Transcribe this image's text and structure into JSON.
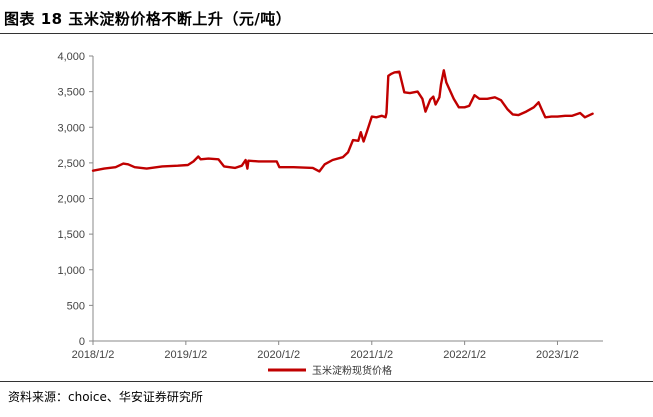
{
  "title": "图表 18 玉米淀粉价格不断上升（元/吨）",
  "source": "资料来源：choice、华安证券研究所",
  "chart_data": {
    "type": "line",
    "title": "图表 18 玉米淀粉价格不断上升（元/吨）",
    "xlabel": "",
    "ylabel": "",
    "ylim": [
      0,
      4000
    ],
    "yticks": [
      0,
      500,
      1000,
      1500,
      2000,
      2500,
      3000,
      3500,
      4000
    ],
    "ytick_labels": [
      "0",
      "500",
      "1,000",
      "1,500",
      "2,000",
      "2,500",
      "3,000",
      "3,500",
      "4,000"
    ],
    "xlim": [
      "2018-01-02",
      "2023-06-30"
    ],
    "xticks": [
      "2018-01-02",
      "2019-01-02",
      "2020-01-02",
      "2021-01-02",
      "2022-01-02",
      "2023-01-02"
    ],
    "xtick_labels": [
      "2018/1/2",
      "2019/1/2",
      "2020/1/2",
      "2021/1/2",
      "2022/1/2",
      "2023/1/2"
    ],
    "grid": false,
    "legend": "bottom",
    "series": [
      {
        "name": "玉米淀粉现货价格",
        "color": "#c00000",
        "points": [
          [
            "2018-01-02",
            2390
          ],
          [
            "2018-02-15",
            2420
          ],
          [
            "2018-04-01",
            2440
          ],
          [
            "2018-05-01",
            2490
          ],
          [
            "2018-05-20",
            2480
          ],
          [
            "2018-06-15",
            2440
          ],
          [
            "2018-08-01",
            2420
          ],
          [
            "2018-10-01",
            2450
          ],
          [
            "2018-12-01",
            2460
          ],
          [
            "2019-01-10",
            2470
          ],
          [
            "2019-02-01",
            2520
          ],
          [
            "2019-02-20",
            2590
          ],
          [
            "2019-03-01",
            2550
          ],
          [
            "2019-04-01",
            2560
          ],
          [
            "2019-05-10",
            2550
          ],
          [
            "2019-06-01",
            2450
          ],
          [
            "2019-07-15",
            2430
          ],
          [
            "2019-08-10",
            2460
          ],
          [
            "2019-08-25",
            2540
          ],
          [
            "2019-09-01",
            2420
          ],
          [
            "2019-09-05",
            2530
          ],
          [
            "2019-10-15",
            2520
          ],
          [
            "2019-12-25",
            2520
          ],
          [
            "2020-01-05",
            2440
          ],
          [
            "2020-03-01",
            2440
          ],
          [
            "2020-05-15",
            2430
          ],
          [
            "2020-06-10",
            2380
          ],
          [
            "2020-07-01",
            2480
          ],
          [
            "2020-08-01",
            2540
          ],
          [
            "2020-09-10",
            2580
          ],
          [
            "2020-10-01",
            2650
          ],
          [
            "2020-10-20",
            2820
          ],
          [
            "2020-11-10",
            2810
          ],
          [
            "2020-11-20",
            2930
          ],
          [
            "2020-12-01",
            2800
          ],
          [
            "2020-12-15",
            2950
          ],
          [
            "2021-01-02",
            3150
          ],
          [
            "2021-01-20",
            3140
          ],
          [
            "2021-02-10",
            3160
          ],
          [
            "2021-02-25",
            3140
          ],
          [
            "2021-03-01",
            3200
          ],
          [
            "2021-03-08",
            3720
          ],
          [
            "2021-03-20",
            3750
          ],
          [
            "2021-04-01",
            3770
          ],
          [
            "2021-04-20",
            3780
          ],
          [
            "2021-05-01",
            3620
          ],
          [
            "2021-05-10",
            3490
          ],
          [
            "2021-06-01",
            3480
          ],
          [
            "2021-07-01",
            3500
          ],
          [
            "2021-07-20",
            3400
          ],
          [
            "2021-08-01",
            3220
          ],
          [
            "2021-08-20",
            3390
          ],
          [
            "2021-09-01",
            3430
          ],
          [
            "2021-09-10",
            3320
          ],
          [
            "2021-09-25",
            3420
          ],
          [
            "2021-10-01",
            3600
          ],
          [
            "2021-10-12",
            3800
          ],
          [
            "2021-10-22",
            3630
          ],
          [
            "2021-11-01",
            3550
          ],
          [
            "2021-11-20",
            3400
          ],
          [
            "2021-12-10",
            3280
          ],
          [
            "2022-01-02",
            3280
          ],
          [
            "2022-01-20",
            3300
          ],
          [
            "2022-02-10",
            3450
          ],
          [
            "2022-03-01",
            3400
          ],
          [
            "2022-04-01",
            3400
          ],
          [
            "2022-05-01",
            3420
          ],
          [
            "2022-05-25",
            3380
          ],
          [
            "2022-06-20",
            3250
          ],
          [
            "2022-07-10",
            3180
          ],
          [
            "2022-08-01",
            3170
          ],
          [
            "2022-09-01",
            3220
          ],
          [
            "2022-10-01",
            3280
          ],
          [
            "2022-10-20",
            3350
          ],
          [
            "2022-11-01",
            3250
          ],
          [
            "2022-11-15",
            3140
          ],
          [
            "2022-12-10",
            3150
          ],
          [
            "2023-01-02",
            3150
          ],
          [
            "2023-02-01",
            3160
          ],
          [
            "2023-03-01",
            3160
          ],
          [
            "2023-04-01",
            3200
          ],
          [
            "2023-04-20",
            3140
          ],
          [
            "2023-05-20",
            3190
          ]
        ]
      }
    ]
  }
}
